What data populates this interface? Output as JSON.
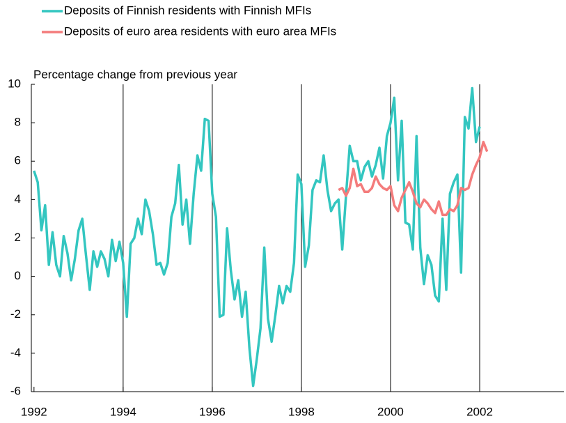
{
  "chart_data": {
    "type": "line",
    "y_axis_label": "Percentage change from previous year",
    "x": [
      1992,
      1992.083,
      1992.167,
      1992.25,
      1992.333,
      1992.417,
      1992.5,
      1992.583,
      1992.667,
      1992.75,
      1992.833,
      1992.917,
      1993,
      1993.083,
      1993.167,
      1993.25,
      1993.333,
      1993.417,
      1993.5,
      1993.583,
      1993.667,
      1993.75,
      1993.833,
      1993.917,
      1994,
      1994.083,
      1994.167,
      1994.25,
      1994.333,
      1994.417,
      1994.5,
      1994.583,
      1994.667,
      1994.75,
      1994.833,
      1994.917,
      1995,
      1995.083,
      1995.167,
      1995.25,
      1995.333,
      1995.417,
      1995.5,
      1995.583,
      1995.667,
      1995.75,
      1995.833,
      1995.917,
      1996,
      1996.083,
      1996.167,
      1996.25,
      1996.333,
      1996.417,
      1996.5,
      1996.583,
      1996.667,
      1996.75,
      1996.833,
      1996.917,
      1997,
      1997.083,
      1997.167,
      1997.25,
      1997.333,
      1997.417,
      1997.5,
      1997.583,
      1997.667,
      1997.75,
      1997.833,
      1997.917,
      1998,
      1998.083,
      1998.167,
      1998.25,
      1998.333,
      1998.417,
      1998.5,
      1998.583,
      1998.667,
      1998.75,
      1998.833,
      1998.917,
      1999,
      1999.083,
      1999.167,
      1999.25,
      1999.333,
      1999.417,
      1999.5,
      1999.583,
      1999.667,
      1999.75,
      1999.833,
      1999.917,
      2000,
      2000.083,
      2000.167,
      2000.25,
      2000.333,
      2000.417,
      2000.5,
      2000.583,
      2000.667,
      2000.75,
      2000.833,
      2000.917,
      2001,
      2001.083,
      2001.167,
      2001.25,
      2001.333,
      2001.417,
      2001.5,
      2001.583,
      2001.667,
      2001.75,
      2001.833,
      2001.917,
      2002,
      2002.083,
      2002.167
    ],
    "series": [
      {
        "name": "Deposits of Finnish residents with Finnish MFIs",
        "color": "#33c6c0",
        "values": [
          5.5,
          4.9,
          2.4,
          3.7,
          0.6,
          2.3,
          0.6,
          0.0,
          2.1,
          1.2,
          -0.2,
          0.9,
          2.4,
          3.0,
          1.1,
          -0.7,
          1.3,
          0.5,
          1.3,
          0.9,
          0.0,
          1.9,
          0.8,
          1.8,
          0.7,
          -2.1,
          1.7,
          2.0,
          3.0,
          2.2,
          4.0,
          3.4,
          2.2,
          0.6,
          0.7,
          0.1,
          0.7,
          3.1,
          3.8,
          5.8,
          2.7,
          4.0,
          1.7,
          4.3,
          6.3,
          5.5,
          8.2,
          8.1,
          4.3,
          3.1,
          -2.1,
          -2.0,
          2.5,
          0.3,
          -1.2,
          -0.2,
          -2.1,
          -0.8,
          -3.7,
          -5.7,
          -4.3,
          -2.7,
          1.5,
          -2.2,
          -3.4,
          -2.0,
          -0.5,
          -1.4,
          -0.5,
          -0.8,
          0.7,
          5.3,
          4.8,
          0.5,
          1.6,
          4.5,
          5.0,
          4.9,
          6.3,
          4.5,
          3.4,
          3.8,
          4.0,
          1.4,
          4.2,
          6.8,
          6.0,
          6.0,
          5.0,
          5.7,
          6.0,
          5.2,
          5.8,
          6.7,
          5.1,
          7.3,
          8.0,
          9.3,
          5.0,
          8.1,
          2.8,
          2.7,
          1.4,
          7.3,
          1.5,
          -0.4,
          1.1,
          0.6,
          -1.0,
          -1.3,
          3.0,
          -0.7,
          4.3,
          4.9,
          5.3,
          0.2,
          8.3,
          7.7,
          9.8,
          7.0,
          7.8,
          null,
          null
        ]
      },
      {
        "name": "Deposits of euro area residents with euro area MFIs",
        "color": "#f47c7c",
        "values": [
          null,
          null,
          null,
          null,
          null,
          null,
          null,
          null,
          null,
          null,
          null,
          null,
          null,
          null,
          null,
          null,
          null,
          null,
          null,
          null,
          null,
          null,
          null,
          null,
          null,
          null,
          null,
          null,
          null,
          null,
          null,
          null,
          null,
          null,
          null,
          null,
          null,
          null,
          null,
          null,
          null,
          null,
          null,
          null,
          null,
          null,
          null,
          null,
          null,
          null,
          null,
          null,
          null,
          null,
          null,
          null,
          null,
          null,
          null,
          null,
          null,
          null,
          null,
          null,
          null,
          null,
          null,
          null,
          null,
          null,
          null,
          null,
          null,
          null,
          null,
          null,
          null,
          null,
          null,
          null,
          null,
          null,
          4.5,
          4.6,
          4.2,
          4.6,
          5.6,
          4.7,
          4.8,
          4.4,
          4.4,
          4.6,
          5.2,
          4.8,
          4.6,
          4.5,
          4.7,
          3.7,
          3.4,
          4.1,
          4.5,
          4.9,
          4.4,
          3.8,
          3.6,
          4.0,
          3.8,
          3.5,
          3.3,
          3.9,
          3.2,
          3.2,
          3.5,
          3.4,
          3.7,
          4.6,
          4.5,
          4.6,
          5.3,
          5.8,
          6.2,
          7.0,
          6.5
        ]
      }
    ],
    "xlim": [
      1991.94,
      2003.89
    ],
    "xticks": [
      1992,
      1994,
      1996,
      1998,
      2000,
      2002
    ],
    "ylim": [
      -6,
      10
    ],
    "yticks": [
      -6,
      -4,
      -2,
      0,
      2,
      4,
      6,
      8,
      10
    ],
    "grid": "x"
  }
}
